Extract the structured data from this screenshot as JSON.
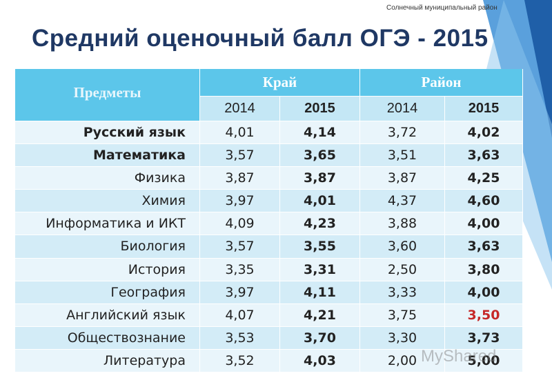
{
  "header": {
    "org": "Солнечный муниципальный район",
    "title": "Средний оценочный балл ОГЭ - 2015"
  },
  "table": {
    "subject_header": "Предметы",
    "groups": [
      "Край",
      "Район"
    ],
    "years": [
      "2014",
      "2015",
      "2014",
      "2015"
    ],
    "bold_rows": [
      0,
      1
    ],
    "highlight": {
      "row": 8,
      "col": 4,
      "color": "#c62828"
    },
    "rows": [
      [
        "Русский язык",
        "4,01",
        "4,14",
        "3,72",
        "4,02"
      ],
      [
        "Математика",
        "3,57",
        "3,65",
        "3,51",
        "3,63"
      ],
      [
        "Физика",
        "3,87",
        "3,87",
        "3,87",
        "4,25"
      ],
      [
        "Химия",
        "3,97",
        "4,01",
        "4,37",
        "4,60"
      ],
      [
        "Информатика и ИКТ",
        "4,09",
        "4,23",
        "3,88",
        "4,00"
      ],
      [
        "Биология",
        "3,57",
        "3,55",
        "3,60",
        "3,63"
      ],
      [
        "История",
        "3,35",
        "3,31",
        "2,50",
        "3,80"
      ],
      [
        "География",
        "3,97",
        "4,11",
        "3,33",
        "4,00"
      ],
      [
        "Английский язык",
        "4,07",
        "4,21",
        "3,75",
        "3,50"
      ],
      [
        "Обществознание",
        "3,53",
        "3,70",
        "3,30",
        "3,73"
      ],
      [
        "Литература",
        "3,52",
        "4,03",
        "2,00",
        "5,00"
      ]
    ]
  },
  "watermark": "MyShared"
}
